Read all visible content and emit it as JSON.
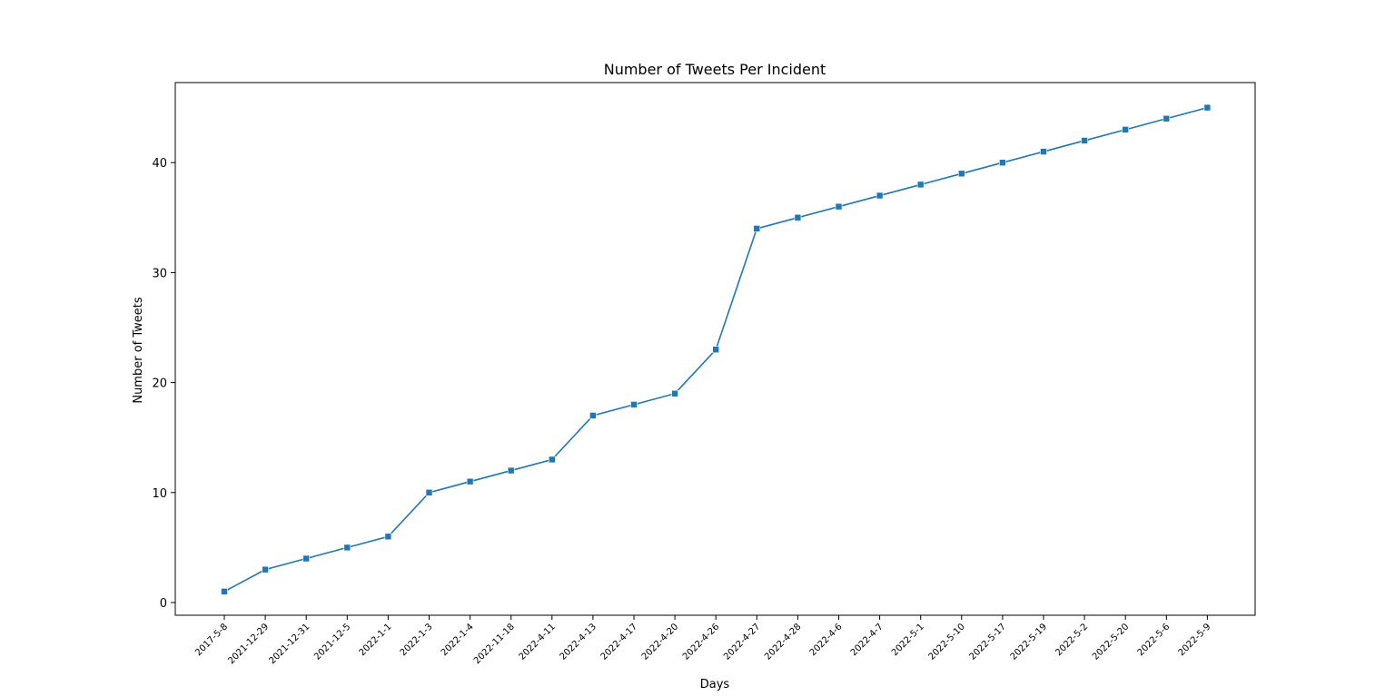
{
  "chart_data": {
    "type": "line",
    "title": "Number of Tweets Per Incident",
    "xlabel": "Days",
    "ylabel": "Number of Tweets",
    "categories": [
      "2017-5-8",
      "2021-12-29",
      "2021-12-31",
      "2021-12-5",
      "2022-1-1",
      "2022-1-3",
      "2022-1-4",
      "2022-11-18",
      "2022-4-11",
      "2022-4-13",
      "2022-4-17",
      "2022-4-20",
      "2022-4-26",
      "2022-4-27",
      "2022-4-28",
      "2022-4-6",
      "2022-4-7",
      "2022-5-1",
      "2022-5-10",
      "2022-5-17",
      "2022-5-19",
      "2022-5-2",
      "2022-5-20",
      "2022-5-6",
      "2022-5-9"
    ],
    "series": [
      {
        "values": [
          1,
          3,
          4,
          5,
          6,
          10,
          11,
          12,
          13,
          17,
          18,
          19,
          23,
          34,
          35,
          36,
          37,
          38,
          39,
          40,
          41,
          42,
          43,
          44,
          45
        ],
        "color": "#1f77b4",
        "marker": "square"
      }
    ],
    "yticks": [
      0,
      10,
      20,
      30,
      40
    ],
    "ylim": [
      -1.2,
      47.2
    ],
    "grid": false,
    "legend": "none"
  }
}
